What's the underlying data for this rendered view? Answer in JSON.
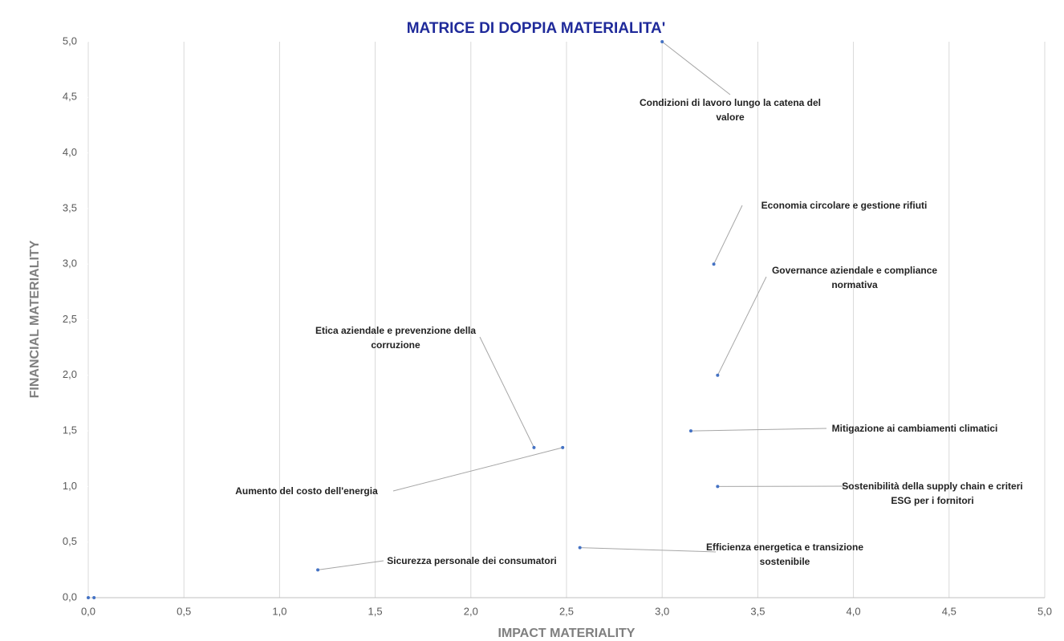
{
  "chart_data": {
    "type": "scatter",
    "title": "MATRICE DI DOPPIA MATERIALITA'",
    "x_label": "IMPACT MATERIALITY",
    "y_label": "FINANCIAL MATERIALITY",
    "color": "#4472c4",
    "grid": true,
    "x": [
      3.0,
      3.27,
      3.29,
      2.33,
      2.48,
      3.15,
      3.29,
      2.57,
      1.2,
      0.0,
      0.03
    ],
    "values": [
      5.0,
      3.0,
      2.0,
      1.35,
      1.35,
      1.5,
      1.0,
      0.45,
      0.25,
      0.0,
      0.0
    ],
    "point_labels": [
      "Condizioni di lavoro lungo la catena del valore",
      "Economia circolare e gestione rifiuti",
      "Governance aziendale e compliance normativa",
      "Etica aziendale e prevenzione della corruzione",
      "Aumento del costo dell'energia",
      "Mitigazione ai cambiamenti climatici",
      "Sostenibilità della supply chain e criteri ESG per i fornitori",
      "Efficienza energetica e transizione sostenibile",
      "Sicurezza personale dei consumatori",
      null,
      null
    ],
    "xlim": [
      0,
      5
    ],
    "ylim": [
      0,
      5
    ],
    "xticks": [
      {
        "value": 0,
        "label": "0,0"
      },
      {
        "value": 0.5,
        "label": "0,5"
      },
      {
        "value": 1,
        "label": "1,0"
      },
      {
        "value": 1.5,
        "label": "1,5"
      },
      {
        "value": 2,
        "label": "2,0"
      },
      {
        "value": 2.5,
        "label": "2,5"
      },
      {
        "value": 3,
        "label": "3,0"
      },
      {
        "value": 3.5,
        "label": "3,5"
      },
      {
        "value": 4,
        "label": "4,0"
      },
      {
        "value": 4.5,
        "label": "4,5"
      },
      {
        "value": 5,
        "label": "5,0"
      }
    ],
    "yticks": [
      {
        "value": 0,
        "label": "0,0"
      },
      {
        "value": 0.5,
        "label": "0,5"
      },
      {
        "value": 1,
        "label": "1,0"
      },
      {
        "value": 1.5,
        "label": "1,5"
      },
      {
        "value": 2,
        "label": "2,0"
      },
      {
        "value": 2.5,
        "label": "2,5"
      },
      {
        "value": 3,
        "label": "3,0"
      },
      {
        "value": 3.5,
        "label": "3,5"
      },
      {
        "value": 4,
        "label": "4,0"
      },
      {
        "value": 4.5,
        "label": "4,5"
      },
      {
        "value": 5,
        "label": "5,0"
      }
    ]
  }
}
